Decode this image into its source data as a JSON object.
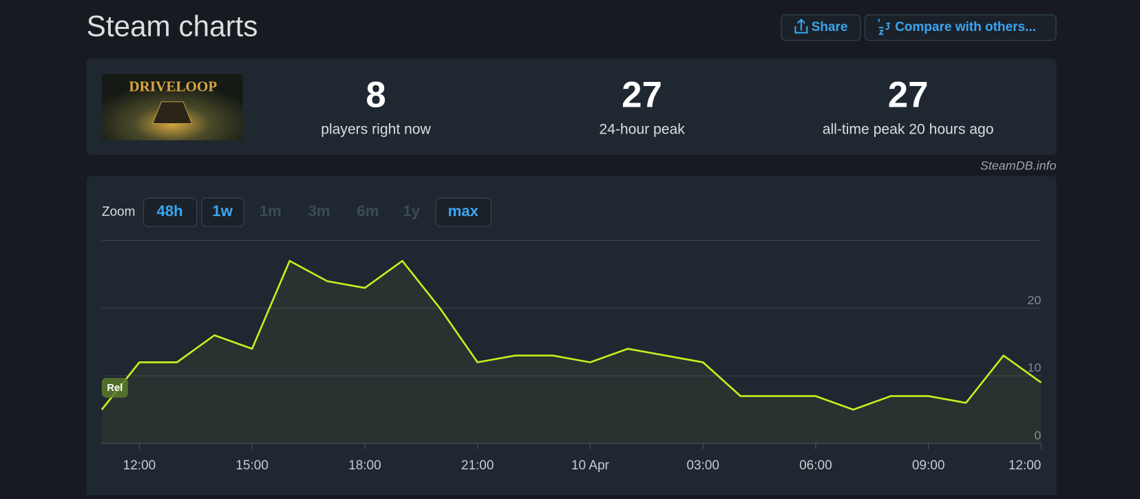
{
  "header": {
    "title": "Steam charts",
    "share": "Share",
    "compare": "Compare with others..."
  },
  "game": {
    "logo_text": "DRIVELOOP"
  },
  "stats": [
    {
      "value": 8,
      "label": "players right now"
    },
    {
      "value": 27,
      "label": "24-hour peak"
    },
    {
      "value": 27,
      "label": "all-time peak 20 hours ago"
    }
  ],
  "source": "SteamDB.info",
  "zoom": {
    "label": "Zoom",
    "options": [
      {
        "label": "48h",
        "enabled": true
      },
      {
        "label": "1w",
        "enabled": true
      },
      {
        "label": "1m",
        "enabled": false
      },
      {
        "label": "3m",
        "enabled": false
      },
      {
        "label": "6m",
        "enabled": false
      },
      {
        "label": "1y",
        "enabled": false
      },
      {
        "label": "max",
        "enabled": true
      }
    ]
  },
  "chart_data": {
    "type": "line",
    "color": "#c6f01e",
    "annotation": "Rel",
    "categories": [
      null,
      "12:00",
      null,
      null,
      "15:00",
      null,
      null,
      "18:00",
      null,
      null,
      "21:00",
      null,
      null,
      "10 Apr",
      null,
      null,
      "03:00",
      null,
      null,
      "06:00",
      null,
      null,
      "09:00",
      null,
      null,
      "12:00"
    ],
    "values": [
      5,
      12,
      12,
      16,
      14,
      27,
      24,
      23,
      27,
      20,
      12,
      13,
      13,
      12,
      14,
      13,
      12,
      7,
      7,
      7,
      5,
      7,
      7,
      6,
      13,
      9
    ],
    "ylim": [
      0,
      30
    ],
    "yticks": [
      0,
      10,
      20
    ],
    "grid": true
  }
}
